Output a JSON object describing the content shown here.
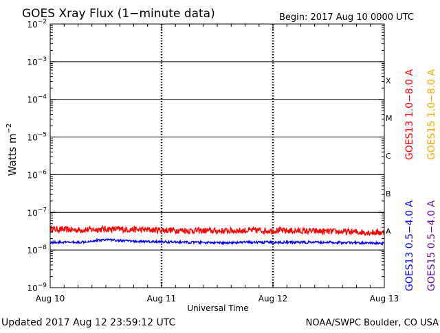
{
  "chart_data": {
    "type": "line",
    "title": "GOES Xray Flux (1−minute data)",
    "begin_label": "Begin:  2017 Aug 10 0000 UTC",
    "xlabel": "Universal Time",
    "ylabel": "Watts m",
    "ylabel_exp": "−2",
    "x_range": [
      "2017-08-10 00:00",
      "2017-08-13 00:00"
    ],
    "x_ticks": [
      "Aug 10",
      "Aug 11",
      "Aug 12",
      "Aug 13"
    ],
    "y_scale": "log",
    "ylim": [
      1e-09,
      0.01
    ],
    "y_ticks": [
      {
        "base": "10",
        "exp": "−9"
      },
      {
        "base": "10",
        "exp": "−8"
      },
      {
        "base": "10",
        "exp": "−7"
      },
      {
        "base": "10",
        "exp": "−6"
      },
      {
        "base": "10",
        "exp": "−5"
      },
      {
        "base": "10",
        "exp": "−4"
      },
      {
        "base": "10",
        "exp": "−3"
      },
      {
        "base": "10",
        "exp": "−2"
      }
    ],
    "flare_classes": [
      {
        "label": "A",
        "flux": 1e-08
      },
      {
        "label": "B",
        "flux": 1e-07
      },
      {
        "label": "C",
        "flux": 1e-06
      },
      {
        "label": "M",
        "flux": 1e-05
      },
      {
        "label": "X",
        "flux": 0.0001
      }
    ],
    "series": [
      {
        "name": "GOES13 1.0−8.0 A",
        "color": "#ff0000",
        "x": [
          "Aug 10 00:00",
          "Aug 10 06:00",
          "Aug 10 12:00",
          "Aug 10 18:00",
          "Aug 11 00:00",
          "Aug 11 06:00",
          "Aug 11 12:00",
          "Aug 11 18:00",
          "Aug 12 00:00",
          "Aug 12 06:00",
          "Aug 12 12:00",
          "Aug 12 18:00",
          "Aug 13 00:00"
        ],
        "values": [
          3.6e-08,
          3.4e-08,
          3.6e-08,
          3.5e-08,
          3.4e-08,
          3.3e-08,
          3.2e-08,
          3.3e-08,
          3.3e-08,
          3.2e-08,
          3.1e-08,
          3e-08,
          2.9e-08
        ]
      },
      {
        "name": "GOES13 0.5−4.0 A",
        "color": "#0000ff",
        "x": [
          "Aug 10 00:00",
          "Aug 10 06:00",
          "Aug 10 12:00",
          "Aug 10 18:00",
          "Aug 11 00:00",
          "Aug 11 06:00",
          "Aug 11 12:00",
          "Aug 11 18:00",
          "Aug 12 00:00",
          "Aug 12 06:00",
          "Aug 12 12:00",
          "Aug 12 18:00",
          "Aug 13 00:00"
        ],
        "values": [
          1.6e-08,
          1.6e-08,
          1.9e-08,
          1.7e-08,
          1.65e-08,
          1.6e-08,
          1.55e-08,
          1.6e-08,
          1.6e-08,
          1.6e-08,
          1.6e-08,
          1.55e-08,
          1.5e-08
        ]
      }
    ],
    "legend": [
      {
        "name": "GOES13 1.0−8.0 A",
        "color": "#ff0000"
      },
      {
        "name": "GOES15 1.0−8.0 A",
        "color": "#ffa500"
      },
      {
        "name": "GOES13 0.5−4.0 A",
        "color": "#0000ff"
      },
      {
        "name": "GOES15 0.5−4.0 A",
        "color": "#6a0dad"
      }
    ],
    "footer_left": "Updated 2017 Aug 12 23:59:12 UTC",
    "footer_right": "NOAA/SWPC Boulder, CO USA"
  }
}
